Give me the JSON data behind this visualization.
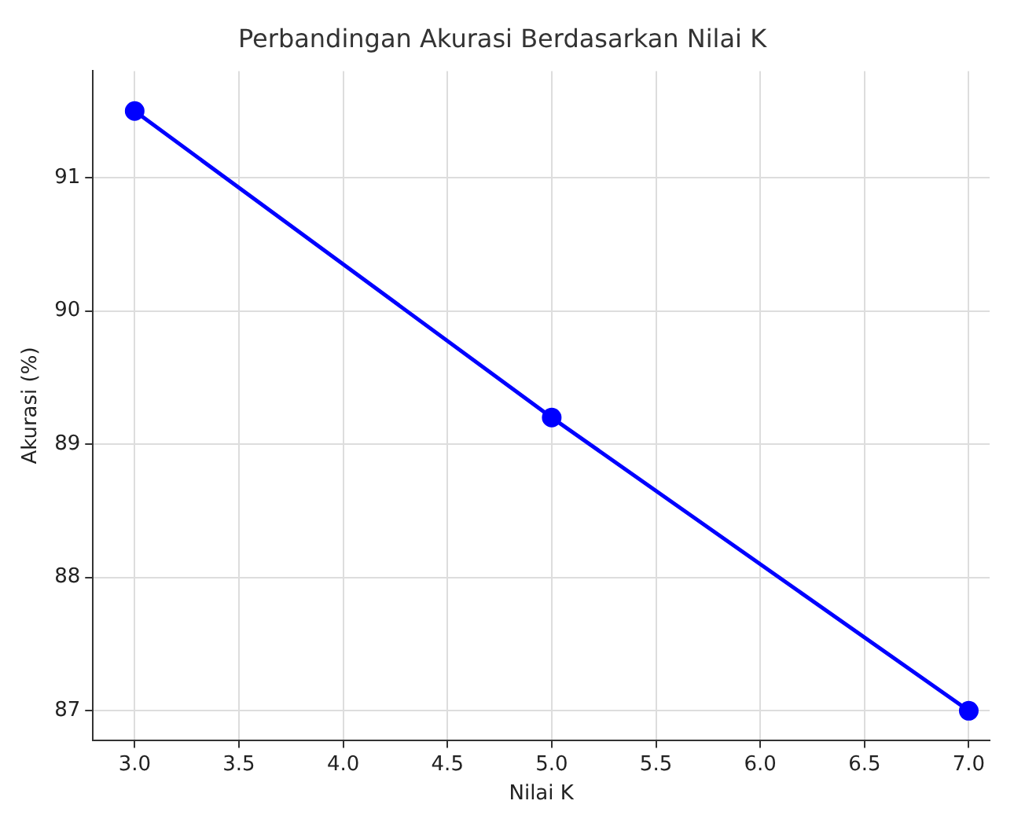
{
  "chart_data": {
    "type": "line",
    "title": "Perbandingan Akurasi Berdasarkan Nilai K",
    "xlabel": "Nilai K",
    "ylabel": "Akurasi (%)",
    "x": [
      3,
      5,
      7
    ],
    "series": [
      {
        "color": "#0000ff",
        "values": [
          91.5,
          89.2,
          87.0
        ]
      }
    ],
    "xlim": [
      2.8,
      7.1
    ],
    "xticks": [
      {
        "value": 3,
        "label": "3.0"
      },
      {
        "value": 3.5,
        "label": "3.5"
      },
      {
        "value": 4,
        "label": "4.0"
      },
      {
        "value": 4.5,
        "label": "4.5"
      },
      {
        "value": 5,
        "label": "5.0"
      },
      {
        "value": 5.5,
        "label": "5.5"
      },
      {
        "value": 6,
        "label": "6.0"
      },
      {
        "value": 6.5,
        "label": "6.5"
      },
      {
        "value": 7,
        "label": "7.0"
      }
    ],
    "ylim": [
      86.78,
      91.8
    ],
    "yticks": [
      87,
      88,
      89,
      90,
      91
    ],
    "grid": true,
    "marker": "circle",
    "line_style": "solid",
    "legend": false
  }
}
